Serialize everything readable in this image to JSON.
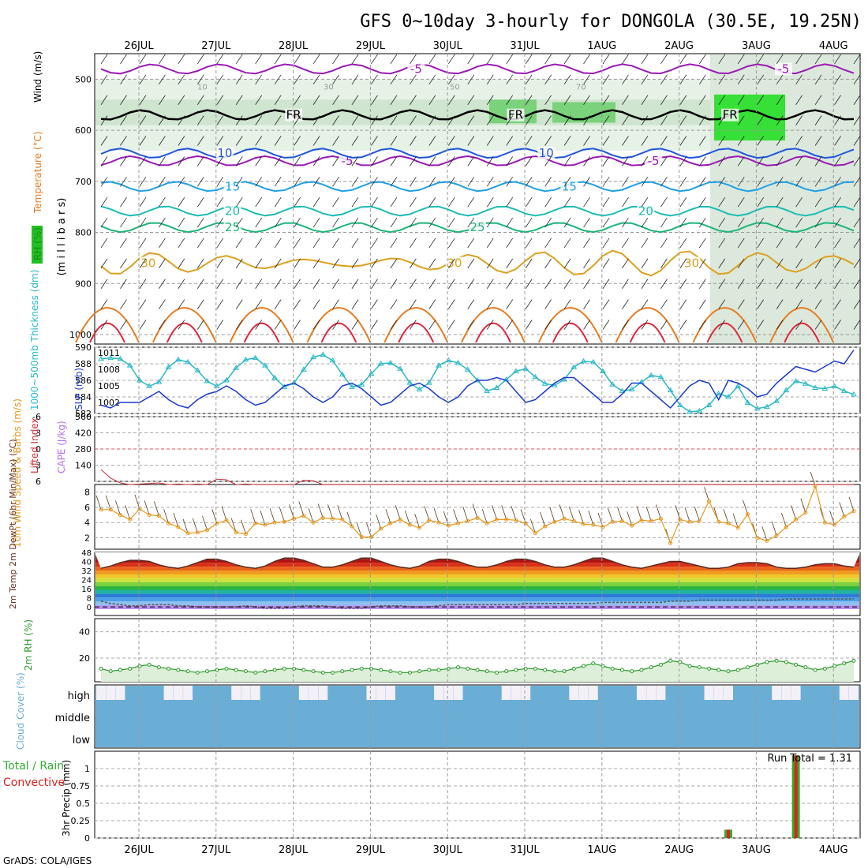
{
  "title": "GFS 0~10day 3-hourly for DONGOLA (30.5E, 19.25N)",
  "credit": "GrADS: COLA/IGES",
  "colors": {
    "purple": "#9a19b4",
    "black": "#000000",
    "blue": "#1f55dd",
    "lightblue": "#1fa0e6",
    "teal": "#1cbcb4",
    "green": "#1cb47a",
    "gold": "#dca01e",
    "orange": "#e87a1e",
    "red": "#e0253a",
    "magenta": "#c8157a",
    "cyan": "#27b8c8",
    "slp": "#1a3ad4",
    "cape": "#b96ef0",
    "li": "#d0303a",
    "wind": "#e7961c",
    "rh": "#2a9a2a",
    "cloud": "#6aaed6",
    "precip_green": "#2eae2e",
    "precip_red": "#e02020"
  },
  "chart_data": [
    {
      "type": "contour-cross-section",
      "panel": "upper-air",
      "x_dates": [
        "26JUL",
        "27JUL",
        "28JUL",
        "29JUL",
        "30JUL",
        "31JUL",
        "1AUG",
        "2AUG",
        "3AUG",
        "4AUG"
      ],
      "ylabel_left": "(m i l l i b a r s)",
      "legend_labels": [
        "RH (%)",
        "Temperature (°C)",
        "Wind (m/s)"
      ],
      "y_ticks": [
        500,
        600,
        700,
        800,
        900,
        1000
      ],
      "ylim": [
        450,
        1000
      ],
      "isotherms": [
        {
          "label": "-5",
          "pressure": 480,
          "color": "purple",
          "label_positions": [
            0.42,
            0.9
          ]
        },
        {
          "label": "FR",
          "pressure": 570,
          "color": "black",
          "label_positions": [
            0.26,
            0.55,
            0.83
          ]
        },
        {
          "label": "-5",
          "pressure": 660,
          "color": "purple",
          "label_positions": [
            0.33,
            0.73
          ]
        },
        {
          "label": "10",
          "pressure": 645,
          "color": "blue",
          "label_positions": [
            0.17,
            0.59
          ]
        },
        {
          "label": "15",
          "pressure": 710,
          "color": "lightblue",
          "label_positions": [
            0.18,
            0.62
          ]
        },
        {
          "label": "20",
          "pressure": 758,
          "color": "teal",
          "label_positions": [
            0.18,
            0.72
          ]
        },
        {
          "label": "25",
          "pressure": 790,
          "color": "green",
          "label_positions": [
            0.18,
            0.5
          ]
        },
        {
          "label": "30",
          "pressure": 860,
          "color": "gold",
          "label_positions": [
            0.07,
            0.47,
            0.78
          ]
        }
      ],
      "rh_contour_labels": [
        "10",
        "30",
        "50",
        "70"
      ]
    },
    {
      "type": "line",
      "panel": "thickness-slp",
      "ylabel_left": "1000~500mb Thickness (dm)",
      "ylabel_right": "SLP (mb)",
      "y_ticks_left": [
        582,
        584,
        586,
        588,
        590
      ],
      "y_ticks_right": [
        1002,
        1005,
        1008,
        1011
      ],
      "series": [
        {
          "name": "Thickness (dm)",
          "color": "cyan",
          "marker": "triangle",
          "values": [
            588.6,
            588.7,
            588.6,
            587.8,
            586.0,
            585.3,
            585.8,
            587.6,
            588.5,
            588.2,
            587.2,
            585.9,
            585.3,
            586.0,
            587.5,
            588.5,
            588.7,
            587.8,
            586.3,
            585.2,
            585.7,
            587.3,
            588.8,
            589.1,
            588.4,
            586.7,
            585.2,
            585.5,
            586.8,
            588.0,
            588.1,
            587.4,
            585.7,
            584.9,
            585.7,
            587.8,
            588.4,
            588.1,
            587.3,
            586.0,
            584.7,
            585.1,
            586.1,
            587.1,
            587.4,
            586.4,
            585.6,
            585.4,
            586.1,
            587.6,
            588.3,
            588.2,
            587.1,
            585.5,
            584.7,
            584.9,
            585.8,
            586.6,
            586.4,
            584.8,
            583.0,
            582.2,
            582.3,
            583.0,
            584.4,
            584.0,
            585.3,
            583.3,
            582.6,
            582.8,
            583.5,
            584.8,
            585.9,
            585.6,
            585.1,
            585.0,
            585.3,
            584.7,
            584.3
          ]
        },
        {
          "name": "SLP (mb)",
          "color": "slp",
          "marker": "none",
          "values": [
            1001.5,
            1001.0,
            1002.0,
            1002.0,
            1002.0,
            1003.0,
            1004.0,
            1002.5,
            1001.5,
            1001.0,
            1002.5,
            1003.5,
            1004.0,
            1005.0,
            1004.0,
            1002.5,
            1001.5,
            1002.0,
            1003.5,
            1005.0,
            1005.5,
            1004.5,
            1003.0,
            1002.0,
            1003.0,
            1005.0,
            1005.5,
            1004.5,
            1003.0,
            1001.5,
            1002.0,
            1003.5,
            1005.0,
            1005.5,
            1004.5,
            1003.0,
            1002.0,
            1003.0,
            1005.0,
            1006.0,
            1006.0,
            1006.5,
            1006.0,
            1004.0,
            1002.0,
            1002.5,
            1004.0,
            1005.5,
            1006.5,
            1006.5,
            1005.0,
            1003.5,
            1002.0,
            1002.0,
            1003.5,
            1005.5,
            1005.5,
            1004.0,
            1002.5,
            1001.0,
            1003.0,
            1005.0,
            1006.0,
            1005.5,
            1002.5,
            1006.0,
            1005.5,
            1004.5,
            1003.0,
            1003.5,
            1005.5,
            1007.0,
            1008.5,
            1008.0,
            1007.5,
            1008.5,
            1009.5,
            1009.0,
            1011.5
          ]
        }
      ]
    },
    {
      "type": "bar+line",
      "panel": "cape-li",
      "ylabel_left": "Lifted Index",
      "ylabel_right": "CAPE (J/kg)",
      "y_ticks_left": [
        -6,
        -3,
        0,
        3,
        6
      ],
      "y_ticks_right": [
        140,
        280,
        420,
        560
      ],
      "series": [
        {
          "name": "Lifted Index",
          "color": "li",
          "values": [
            3.8,
            5.4,
            6.3,
            6.6,
            6.5,
            6.4,
            6.3,
            6.6,
            6.5,
            6.6,
            6.5,
            6.6,
            5.6,
            5.7,
            6.6,
            6.5,
            6.6,
            6.6,
            6.6,
            6.6,
            6.6,
            5.8,
            5.9,
            6.6,
            6.6,
            6.6,
            6.6,
            6.6,
            6.6,
            6.6,
            6.6,
            6.6,
            6.6,
            6.6,
            6.6,
            6.6,
            6.6,
            6.6,
            6.6,
            6.6,
            6.6,
            6.6,
            6.6,
            6.6,
            6.6,
            6.6,
            6.6,
            6.6,
            6.6,
            6.6,
            6.6,
            6.6,
            6.6,
            6.6,
            6.6,
            6.6,
            6.6,
            6.6,
            6.6,
            6.6,
            6.6,
            6.6,
            6.6,
            6.6,
            6.6,
            6.6,
            6.6,
            6.6,
            6.6,
            6.6,
            6.6,
            6.6,
            6.6,
            6.6,
            6.6,
            6.6,
            6.6,
            6.6,
            6.6
          ]
        },
        {
          "name": "CAPE (J/kg)",
          "color": "cape",
          "values": [
            0,
            0,
            0,
            0,
            0,
            0,
            0,
            0,
            0,
            0,
            0,
            0,
            0,
            0,
            0,
            0,
            0,
            0,
            0,
            0,
            0,
            0,
            0,
            0,
            0,
            0,
            0,
            0,
            0,
            0,
            0,
            0,
            0,
            0,
            0,
            0,
            0,
            0,
            0,
            0,
            0,
            0,
            0,
            0,
            0,
            0,
            0,
            0,
            0,
            0,
            0,
            0,
            0,
            0,
            0,
            0,
            0,
            0,
            0,
            0,
            0,
            0,
            0,
            0,
            0,
            0,
            0,
            0,
            0,
            0,
            0,
            0,
            0,
            0,
            0,
            0,
            0,
            0,
            0
          ]
        }
      ]
    },
    {
      "type": "line",
      "panel": "wind10m",
      "ylabel": "10m Wind Speed & Barbs (m/s)",
      "y_ticks": [
        2,
        4,
        6,
        8
      ],
      "series": [
        {
          "name": "10m wind speed",
          "color": "wind",
          "values": [
            5.7,
            5.7,
            5.0,
            4.4,
            5.8,
            5.0,
            4.9,
            3.9,
            3.4,
            2.6,
            2.7,
            3.0,
            3.9,
            4.3,
            2.7,
            2.5,
            3.9,
            3.7,
            4.0,
            4.1,
            4.5,
            4.9,
            4.0,
            4.6,
            4.5,
            4.4,
            3.5,
            2.1,
            2.1,
            3.2,
            3.9,
            4.4,
            3.7,
            3.3,
            4.3,
            4.0,
            3.6,
            3.9,
            4.2,
            4.6,
            3.9,
            4.4,
            4.4,
            4.3,
            3.9,
            2.6,
            3.5,
            4.1,
            4.5,
            4.2,
            3.8,
            3.7,
            3.4,
            4.1,
            4.2,
            3.6,
            4.3,
            4.2,
            4.5,
            1.3,
            4.4,
            4.1,
            4.2,
            6.8,
            4.1,
            3.9,
            3.3,
            5.1,
            2.0,
            1.6,
            2.3,
            3.4,
            4.4,
            5.3,
            8.8,
            4.0,
            3.7,
            4.8,
            5.5
          ]
        }
      ]
    },
    {
      "type": "area+line",
      "panel": "temp2m",
      "ylabel": "2m Temp 2m DewPt (6hr Min/Max) (°C)",
      "y_ticks": [
        0,
        8,
        16,
        24,
        32,
        40,
        48
      ],
      "series": [
        {
          "name": "2m Temp",
          "values": [
            34,
            36,
            39,
            41,
            41,
            40,
            37,
            35,
            34,
            36,
            39,
            42,
            42,
            40,
            37,
            35,
            34,
            36,
            40,
            43,
            43,
            41,
            38,
            35,
            35,
            37,
            40,
            43,
            43,
            40,
            37,
            35,
            34,
            36,
            40,
            42,
            42,
            40,
            37,
            35,
            35,
            37,
            40,
            42,
            42,
            40,
            37,
            35,
            35,
            37,
            40,
            43,
            43,
            40,
            37,
            35,
            34,
            36,
            38,
            40,
            40,
            38,
            36,
            34,
            34,
            35,
            38,
            39,
            39,
            38,
            35,
            34,
            34,
            35,
            37,
            38,
            38,
            36,
            35
          ]
        },
        {
          "name": "2m DewPt",
          "values": [
            5,
            3,
            2,
            1,
            1,
            2,
            2,
            2,
            1,
            1,
            0,
            0,
            0,
            0,
            0,
            1,
            0,
            -1,
            -1,
            -1,
            0,
            1,
            1,
            1,
            0,
            -1,
            -1,
            -1,
            0,
            1,
            1,
            1,
            0,
            0,
            0,
            1,
            2,
            2,
            2,
            2,
            2,
            2,
            2,
            2,
            3,
            3,
            3,
            3,
            3,
            3,
            3,
            3,
            4,
            4,
            4,
            4,
            4,
            4,
            4,
            5,
            5,
            5,
            6,
            6,
            6,
            6,
            6,
            6,
            6,
            6,
            6,
            7,
            7,
            7,
            7,
            7,
            7,
            7,
            7
          ]
        }
      ]
    },
    {
      "type": "area+line",
      "panel": "rh2m",
      "ylabel": "2m RH (%)",
      "y_ticks": [
        20,
        40
      ],
      "series": [
        {
          "name": "2m RH",
          "values": [
            12,
            10,
            11,
            12,
            14,
            15,
            13,
            12,
            11,
            10,
            9,
            10,
            11,
            12,
            11,
            10,
            9,
            10,
            11,
            12,
            12,
            11,
            10,
            9,
            9,
            10,
            11,
            12,
            12,
            11,
            10,
            9,
            9,
            10,
            11,
            11,
            12,
            13,
            12,
            11,
            10,
            9,
            10,
            11,
            12,
            12,
            11,
            10,
            10,
            12,
            14,
            16,
            14,
            12,
            11,
            10,
            11,
            13,
            15,
            18,
            17,
            14,
            13,
            12,
            11,
            10,
            11,
            13,
            15,
            17,
            18,
            17,
            15,
            13,
            11,
            12,
            14,
            16,
            18
          ]
        }
      ]
    },
    {
      "type": "heatmap",
      "panel": "cloud",
      "ylabel": "Cloud Cover (%)",
      "levels": [
        "high",
        "middle",
        "low"
      ]
    },
    {
      "type": "bar",
      "panel": "precip",
      "ylabel_left": "Total / Rain",
      "ylabel_left2": "Convective",
      "ylabel": "3hr Precip (mm)",
      "annotation": "Run Total = 1.31",
      "y_ticks": [
        "0",
        "0.25",
        "0.5",
        "0.75",
        "1"
      ],
      "ylim": [
        0,
        1.25
      ],
      "bars": [
        {
          "step": 65,
          "value": 0.12
        },
        {
          "step": 72,
          "value": 1.19
        }
      ]
    }
  ]
}
